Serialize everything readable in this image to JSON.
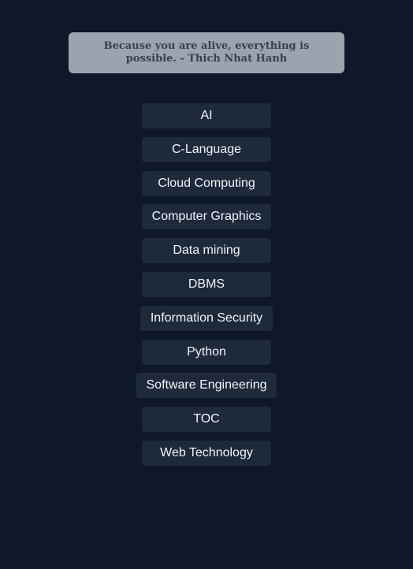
{
  "quote": {
    "text": "Because you are alive, everything is possible. - Thich Nhat Hanh"
  },
  "subjects": [
    {
      "label": "AI"
    },
    {
      "label": "C-Language"
    },
    {
      "label": "Cloud Computing"
    },
    {
      "label": "Computer Graphics"
    },
    {
      "label": "Data mining"
    },
    {
      "label": "DBMS"
    },
    {
      "label": "Information Security"
    },
    {
      "label": "Python"
    },
    {
      "label": "Software Engineering"
    },
    {
      "label": "TOC"
    },
    {
      "label": "Web Technology"
    }
  ],
  "colors": {
    "background": "#0f172a",
    "quote_box": "#9ca3af",
    "quote_text": "#374151",
    "button_bg": "#1e293b",
    "button_text": "#f1f5f9"
  }
}
